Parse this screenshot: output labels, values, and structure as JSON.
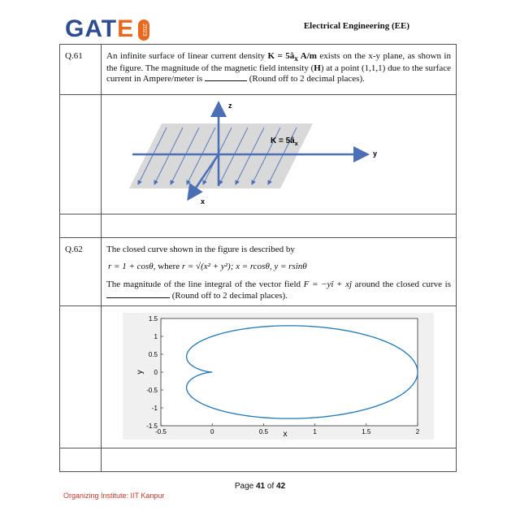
{
  "header": {
    "logo_word": "GATE",
    "logo_year": "2023",
    "subject": "Electrical Engineering (EE)"
  },
  "q61": {
    "number": "Q.61",
    "text_a": "An infinite surface of linear current density ",
    "K_expr": "K = 5â",
    "K_sub": "x",
    "K_unit": " A/m",
    "text_b": " exists on the x-y plane, as shown in the figure. The magnitude of the magnetic field intensity (",
    "H_sym": "H",
    "text_c": ") at a point (1,1,1) due to the surface current in Ampere/meter is ",
    "text_d": " (Round off to 2 decimal places).",
    "figure": {
      "axis_z": "z",
      "axis_y": "y",
      "axis_x": "x",
      "label_main": "K = 5â",
      "label_sub": "x"
    }
  },
  "q62": {
    "number": "Q.62",
    "intro": "The closed curve shown in the figure is described by",
    "formula_a": "r = 1 + cosθ",
    "formula_b": ", where ",
    "formula_c": "r = √(x² + y²)",
    "formula_d": "; x = rcosθ, y = rsinθ",
    "text_a": "The magnitude of the line integral of the vector field ",
    "field": "F = −yî + xĵ",
    "text_b": " around the closed curve is ",
    "text_c": " (Round off to 2 decimal places)."
  },
  "chart_data": {
    "type": "line",
    "title": "",
    "xlabel": "x",
    "ylabel": "y",
    "xlim": [
      -0.5,
      2
    ],
    "ylim": [
      -1.5,
      1.5
    ],
    "xticks": [
      "-0.5",
      "0",
      "0.5",
      "1",
      "1.5",
      "2"
    ],
    "yticks": [
      "1.5",
      "1",
      "0.5",
      "0",
      "-0.5",
      "-1",
      "-1.5"
    ],
    "grid": false,
    "series": [
      {
        "equation": "r = 1 + cosθ",
        "theta_range": [
          0,
          6.2832
        ],
        "color": "#1f77b4"
      }
    ]
  },
  "footer": {
    "page_prefix": "Page ",
    "page_current": "41",
    "page_mid": " of ",
    "page_total": "42",
    "org": "Organizing Institute: IIT Kanpur"
  }
}
